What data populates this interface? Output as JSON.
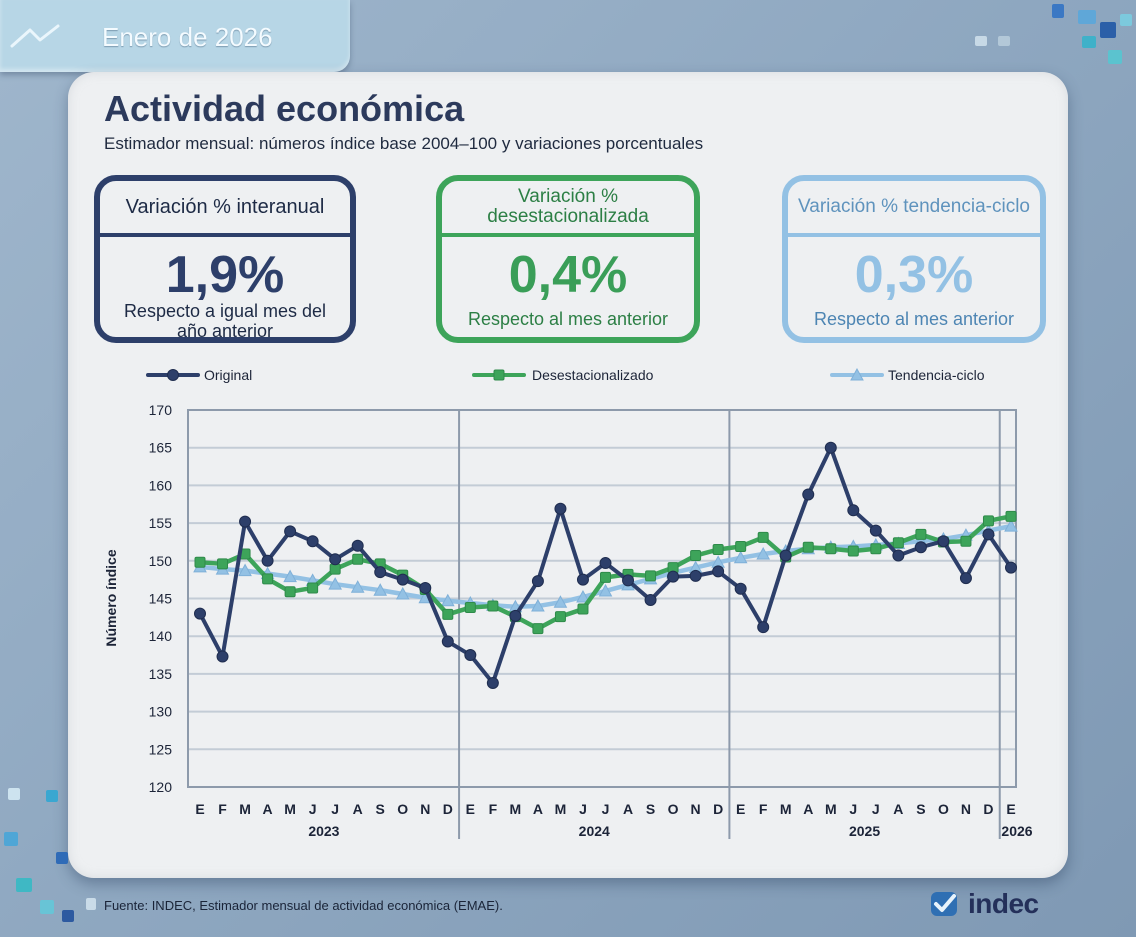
{
  "header": {
    "date_label": "Enero de 2026"
  },
  "title": "Actividad económica",
  "subtitle": "Estimador mensual: números índice base 2004–100 y variaciones porcentuales",
  "kpis": [
    {
      "heading": "Variación % interanual",
      "value": "1,9%",
      "note": "Respecto a igual mes del año anterior",
      "color": "#2d3f6a"
    },
    {
      "heading": "Variación % desestacionalizada",
      "value": "0,4%",
      "note": "Respecto al mes anterior",
      "color": "#3da45a"
    },
    {
      "heading": "Variación % tendencia-ciclo",
      "value": "0,3%",
      "note": "Respecto al mes anterior",
      "color": "#93c1e4"
    }
  ],
  "chart_data": {
    "type": "line",
    "ylabel": "Número índice",
    "ylim": [
      120,
      170
    ],
    "yticks": [
      120,
      125,
      130,
      135,
      140,
      145,
      150,
      155,
      160,
      165,
      170
    ],
    "grid": true,
    "legend_position": "top",
    "month_labels": [
      "E",
      "F",
      "M",
      "A",
      "M",
      "J",
      "J",
      "A",
      "S",
      "O",
      "N",
      "D",
      "E",
      "F",
      "M",
      "A",
      "M",
      "J",
      "J",
      "A",
      "S",
      "O",
      "N",
      "D",
      "E",
      "F",
      "M",
      "A",
      "M",
      "J",
      "J",
      "A",
      "S",
      "O",
      "N",
      "D",
      "E"
    ],
    "year_labels": [
      "2023",
      "2024",
      "2025",
      "2026"
    ],
    "series": [
      {
        "name": "Original",
        "color": "#2d3f6a",
        "marker": "circle",
        "values": [
          143.0,
          137.3,
          155.2,
          150.0,
          153.9,
          152.6,
          150.2,
          152.0,
          148.5,
          147.5,
          146.4,
          139.3,
          137.5,
          133.8,
          142.7,
          147.3,
          156.9,
          147.5,
          149.7,
          147.4,
          144.8,
          147.9,
          148.0,
          148.6,
          146.3,
          141.2,
          150.7,
          158.8,
          165.0,
          156.7,
          154.0,
          150.7,
          151.8,
          152.6,
          147.7,
          153.5,
          149.1
        ]
      },
      {
        "name": "Desestacionalizado",
        "color": "#3da45a",
        "marker": "square",
        "values": [
          149.8,
          149.6,
          150.9,
          147.6,
          145.9,
          146.4,
          148.9,
          150.2,
          149.6,
          148.1,
          146.2,
          142.9,
          143.8,
          144.0,
          142.6,
          141.0,
          142.6,
          143.6,
          147.8,
          148.2,
          148.0,
          149.1,
          150.7,
          151.5,
          151.9,
          153.1,
          150.5,
          151.8,
          151.6,
          151.3,
          151.6,
          152.4,
          153.5,
          152.5,
          152.6,
          155.3,
          155.9
        ]
      },
      {
        "name": "Tendencia-ciclo",
        "color": "#93c1e4",
        "marker": "triangle",
        "values": [
          149.2,
          148.9,
          148.7,
          148.3,
          147.9,
          147.4,
          146.9,
          146.5,
          146.1,
          145.6,
          145.1,
          144.7,
          144.4,
          144.1,
          143.9,
          144.0,
          144.5,
          145.2,
          146.0,
          146.8,
          147.6,
          148.4,
          149.1,
          149.8,
          150.4,
          150.9,
          151.3,
          151.6,
          151.8,
          151.9,
          152.1,
          152.3,
          152.6,
          152.9,
          153.4,
          154.0,
          154.6
        ]
      }
    ]
  },
  "footer": {
    "source": "Fuente: INDEC, Estimador mensual de actividad económica (EMAE).",
    "logo_text": "indec"
  }
}
